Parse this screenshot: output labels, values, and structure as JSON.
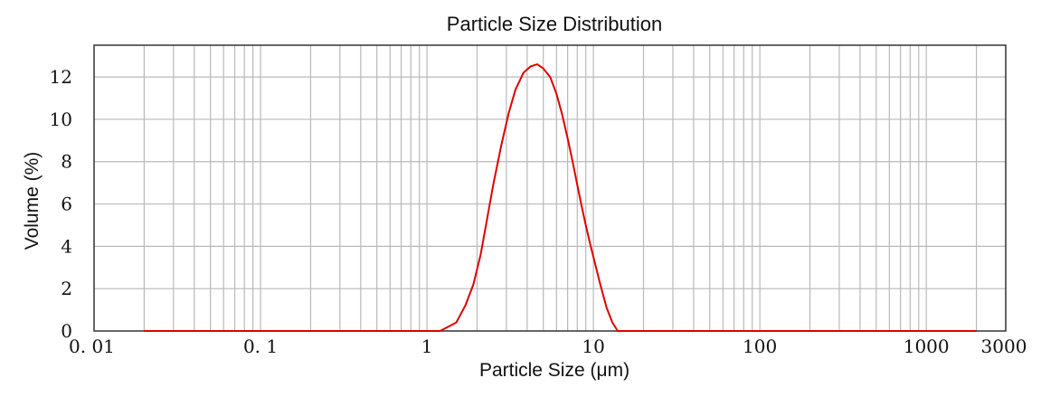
{
  "chart_data": {
    "type": "line",
    "title": "Particle Size Distribution",
    "xlabel": "Particle Size (μm)",
    "ylabel": "Volume (%)",
    "x_scale": "log",
    "xlim": [
      0.01,
      3000
    ],
    "ylim": [
      0,
      13.5
    ],
    "x_tick_labels": [
      {
        "value": 0.01,
        "label": "0. 01"
      },
      {
        "value": 0.1,
        "label": "0. 1"
      },
      {
        "value": 1,
        "label": "1"
      },
      {
        "value": 10,
        "label": "10"
      },
      {
        "value": 100,
        "label": "100"
      },
      {
        "value": 1000,
        "label": "1000"
      },
      {
        "value": 3000,
        "label": "3000"
      }
    ],
    "y_ticks": [
      0,
      2,
      4,
      6,
      8,
      10,
      12
    ],
    "grid": true,
    "line_color": "#e00000",
    "series": [
      {
        "name": "",
        "x": [
          0.02,
          0.05,
          0.1,
          0.3,
          0.8,
          1.2,
          1.5,
          1.7,
          1.9,
          2.1,
          2.3,
          2.5,
          2.8,
          3.1,
          3.4,
          3.8,
          4.2,
          4.6,
          5.0,
          5.5,
          6.0,
          6.5,
          7.0,
          7.5,
          8.0,
          8.5,
          9.0,
          9.5,
          10.0,
          11.0,
          12.0,
          13.0,
          14.0,
          20,
          50,
          100,
          500,
          1000,
          2000
        ],
        "y": [
          0,
          0,
          0,
          0,
          0,
          0,
          0.4,
          1.2,
          2.2,
          3.6,
          5.3,
          6.9,
          8.8,
          10.3,
          11.4,
          12.2,
          12.5,
          12.6,
          12.4,
          12.0,
          11.2,
          10.2,
          9.1,
          8.0,
          6.9,
          5.9,
          5.0,
          4.2,
          3.5,
          2.2,
          1.1,
          0.4,
          0,
          0,
          0,
          0,
          0,
          0,
          0
        ]
      }
    ]
  }
}
